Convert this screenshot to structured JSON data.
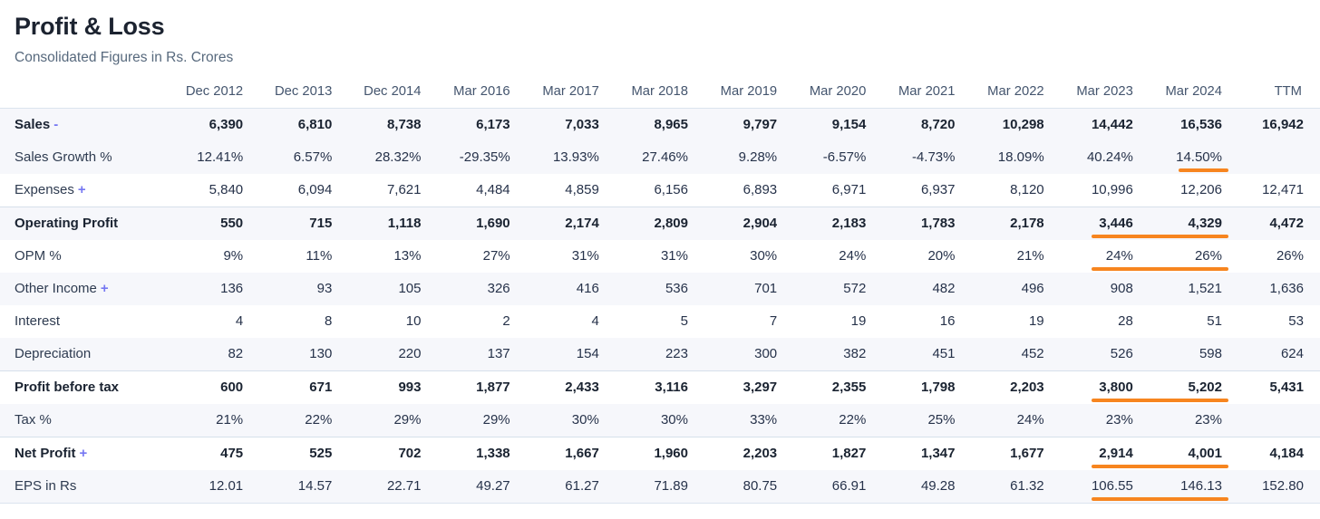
{
  "header": {
    "title": "Profit & Loss",
    "subtitle": "Consolidated Figures in Rs. Crores"
  },
  "colors": {
    "highlight_orange": "#f7851f",
    "expand_link_purple": "#7577f2",
    "stripe_background": "#f6f7fb",
    "section_border": "#d6e0eb"
  },
  "table": {
    "columns": [
      "Dec 2012",
      "Dec 2013",
      "Dec 2014",
      "Mar 2016",
      "Mar 2017",
      "Mar 2018",
      "Mar 2019",
      "Mar 2020",
      "Mar 2021",
      "Mar 2022",
      "Mar 2023",
      "Mar 2024",
      "TTM"
    ],
    "rows": [
      {
        "label": "Sales",
        "suffix": "-",
        "bold": true,
        "stripe": true,
        "border_top": false,
        "underline": null,
        "values": [
          "6,390",
          "6,810",
          "8,738",
          "6,173",
          "7,033",
          "8,965",
          "9,797",
          "9,154",
          "8,720",
          "10,298",
          "14,442",
          "16,536",
          "16,942"
        ]
      },
      {
        "label": "Sales Growth %",
        "suffix": null,
        "bold": false,
        "stripe": true,
        "border_top": false,
        "underline": [
          11,
          11
        ],
        "values": [
          "12.41%",
          "6.57%",
          "28.32%",
          "-29.35%",
          "13.93%",
          "27.46%",
          "9.28%",
          "-6.57%",
          "-4.73%",
          "18.09%",
          "40.24%",
          "14.50%",
          ""
        ]
      },
      {
        "label": "Expenses",
        "suffix": "+",
        "bold": false,
        "stripe": false,
        "border_top": false,
        "underline": null,
        "values": [
          "5,840",
          "6,094",
          "7,621",
          "4,484",
          "4,859",
          "6,156",
          "6,893",
          "6,971",
          "6,937",
          "8,120",
          "10,996",
          "12,206",
          "12,471"
        ]
      },
      {
        "label": "Operating Profit",
        "suffix": null,
        "bold": true,
        "stripe": true,
        "border_top": true,
        "underline": [
          10,
          11
        ],
        "values": [
          "550",
          "715",
          "1,118",
          "1,690",
          "2,174",
          "2,809",
          "2,904",
          "2,183",
          "1,783",
          "2,178",
          "3,446",
          "4,329",
          "4,472"
        ]
      },
      {
        "label": "OPM %",
        "suffix": null,
        "bold": false,
        "stripe": false,
        "border_top": false,
        "underline": [
          10,
          11
        ],
        "values": [
          "9%",
          "11%",
          "13%",
          "27%",
          "31%",
          "31%",
          "30%",
          "24%",
          "20%",
          "21%",
          "24%",
          "26%",
          "26%"
        ]
      },
      {
        "label": "Other Income",
        "suffix": "+",
        "bold": false,
        "stripe": true,
        "border_top": false,
        "underline": null,
        "values": [
          "136",
          "93",
          "105",
          "326",
          "416",
          "536",
          "701",
          "572",
          "482",
          "496",
          "908",
          "1,521",
          "1,636"
        ]
      },
      {
        "label": "Interest",
        "suffix": null,
        "bold": false,
        "stripe": false,
        "border_top": false,
        "underline": null,
        "values": [
          "4",
          "8",
          "10",
          "2",
          "4",
          "5",
          "7",
          "19",
          "16",
          "19",
          "28",
          "51",
          "53"
        ]
      },
      {
        "label": "Depreciation",
        "suffix": null,
        "bold": false,
        "stripe": true,
        "border_top": false,
        "underline": null,
        "values": [
          "82",
          "130",
          "220",
          "137",
          "154",
          "223",
          "300",
          "382",
          "451",
          "452",
          "526",
          "598",
          "624"
        ]
      },
      {
        "label": "Profit before tax",
        "suffix": null,
        "bold": true,
        "stripe": false,
        "border_top": true,
        "underline": [
          10,
          11
        ],
        "values": [
          "600",
          "671",
          "993",
          "1,877",
          "2,433",
          "3,116",
          "3,297",
          "2,355",
          "1,798",
          "2,203",
          "3,800",
          "5,202",
          "5,431"
        ]
      },
      {
        "label": "Tax %",
        "suffix": null,
        "bold": false,
        "stripe": true,
        "border_top": false,
        "underline": null,
        "values": [
          "21%",
          "22%",
          "29%",
          "29%",
          "30%",
          "30%",
          "33%",
          "22%",
          "25%",
          "24%",
          "23%",
          "23%",
          ""
        ]
      },
      {
        "label": "Net Profit",
        "suffix": "+",
        "bold": true,
        "stripe": false,
        "border_top": true,
        "underline": [
          10,
          11
        ],
        "values": [
          "475",
          "525",
          "702",
          "1,338",
          "1,667",
          "1,960",
          "2,203",
          "1,827",
          "1,347",
          "1,677",
          "2,914",
          "4,001",
          "4,184"
        ]
      },
      {
        "label": "EPS in Rs",
        "suffix": null,
        "bold": false,
        "stripe": true,
        "border_top": false,
        "underline": [
          10,
          11
        ],
        "values": [
          "12.01",
          "14.57",
          "22.71",
          "49.27",
          "61.27",
          "71.89",
          "80.75",
          "66.91",
          "49.28",
          "61.32",
          "106.55",
          "146.13",
          "152.80"
        ]
      }
    ]
  }
}
